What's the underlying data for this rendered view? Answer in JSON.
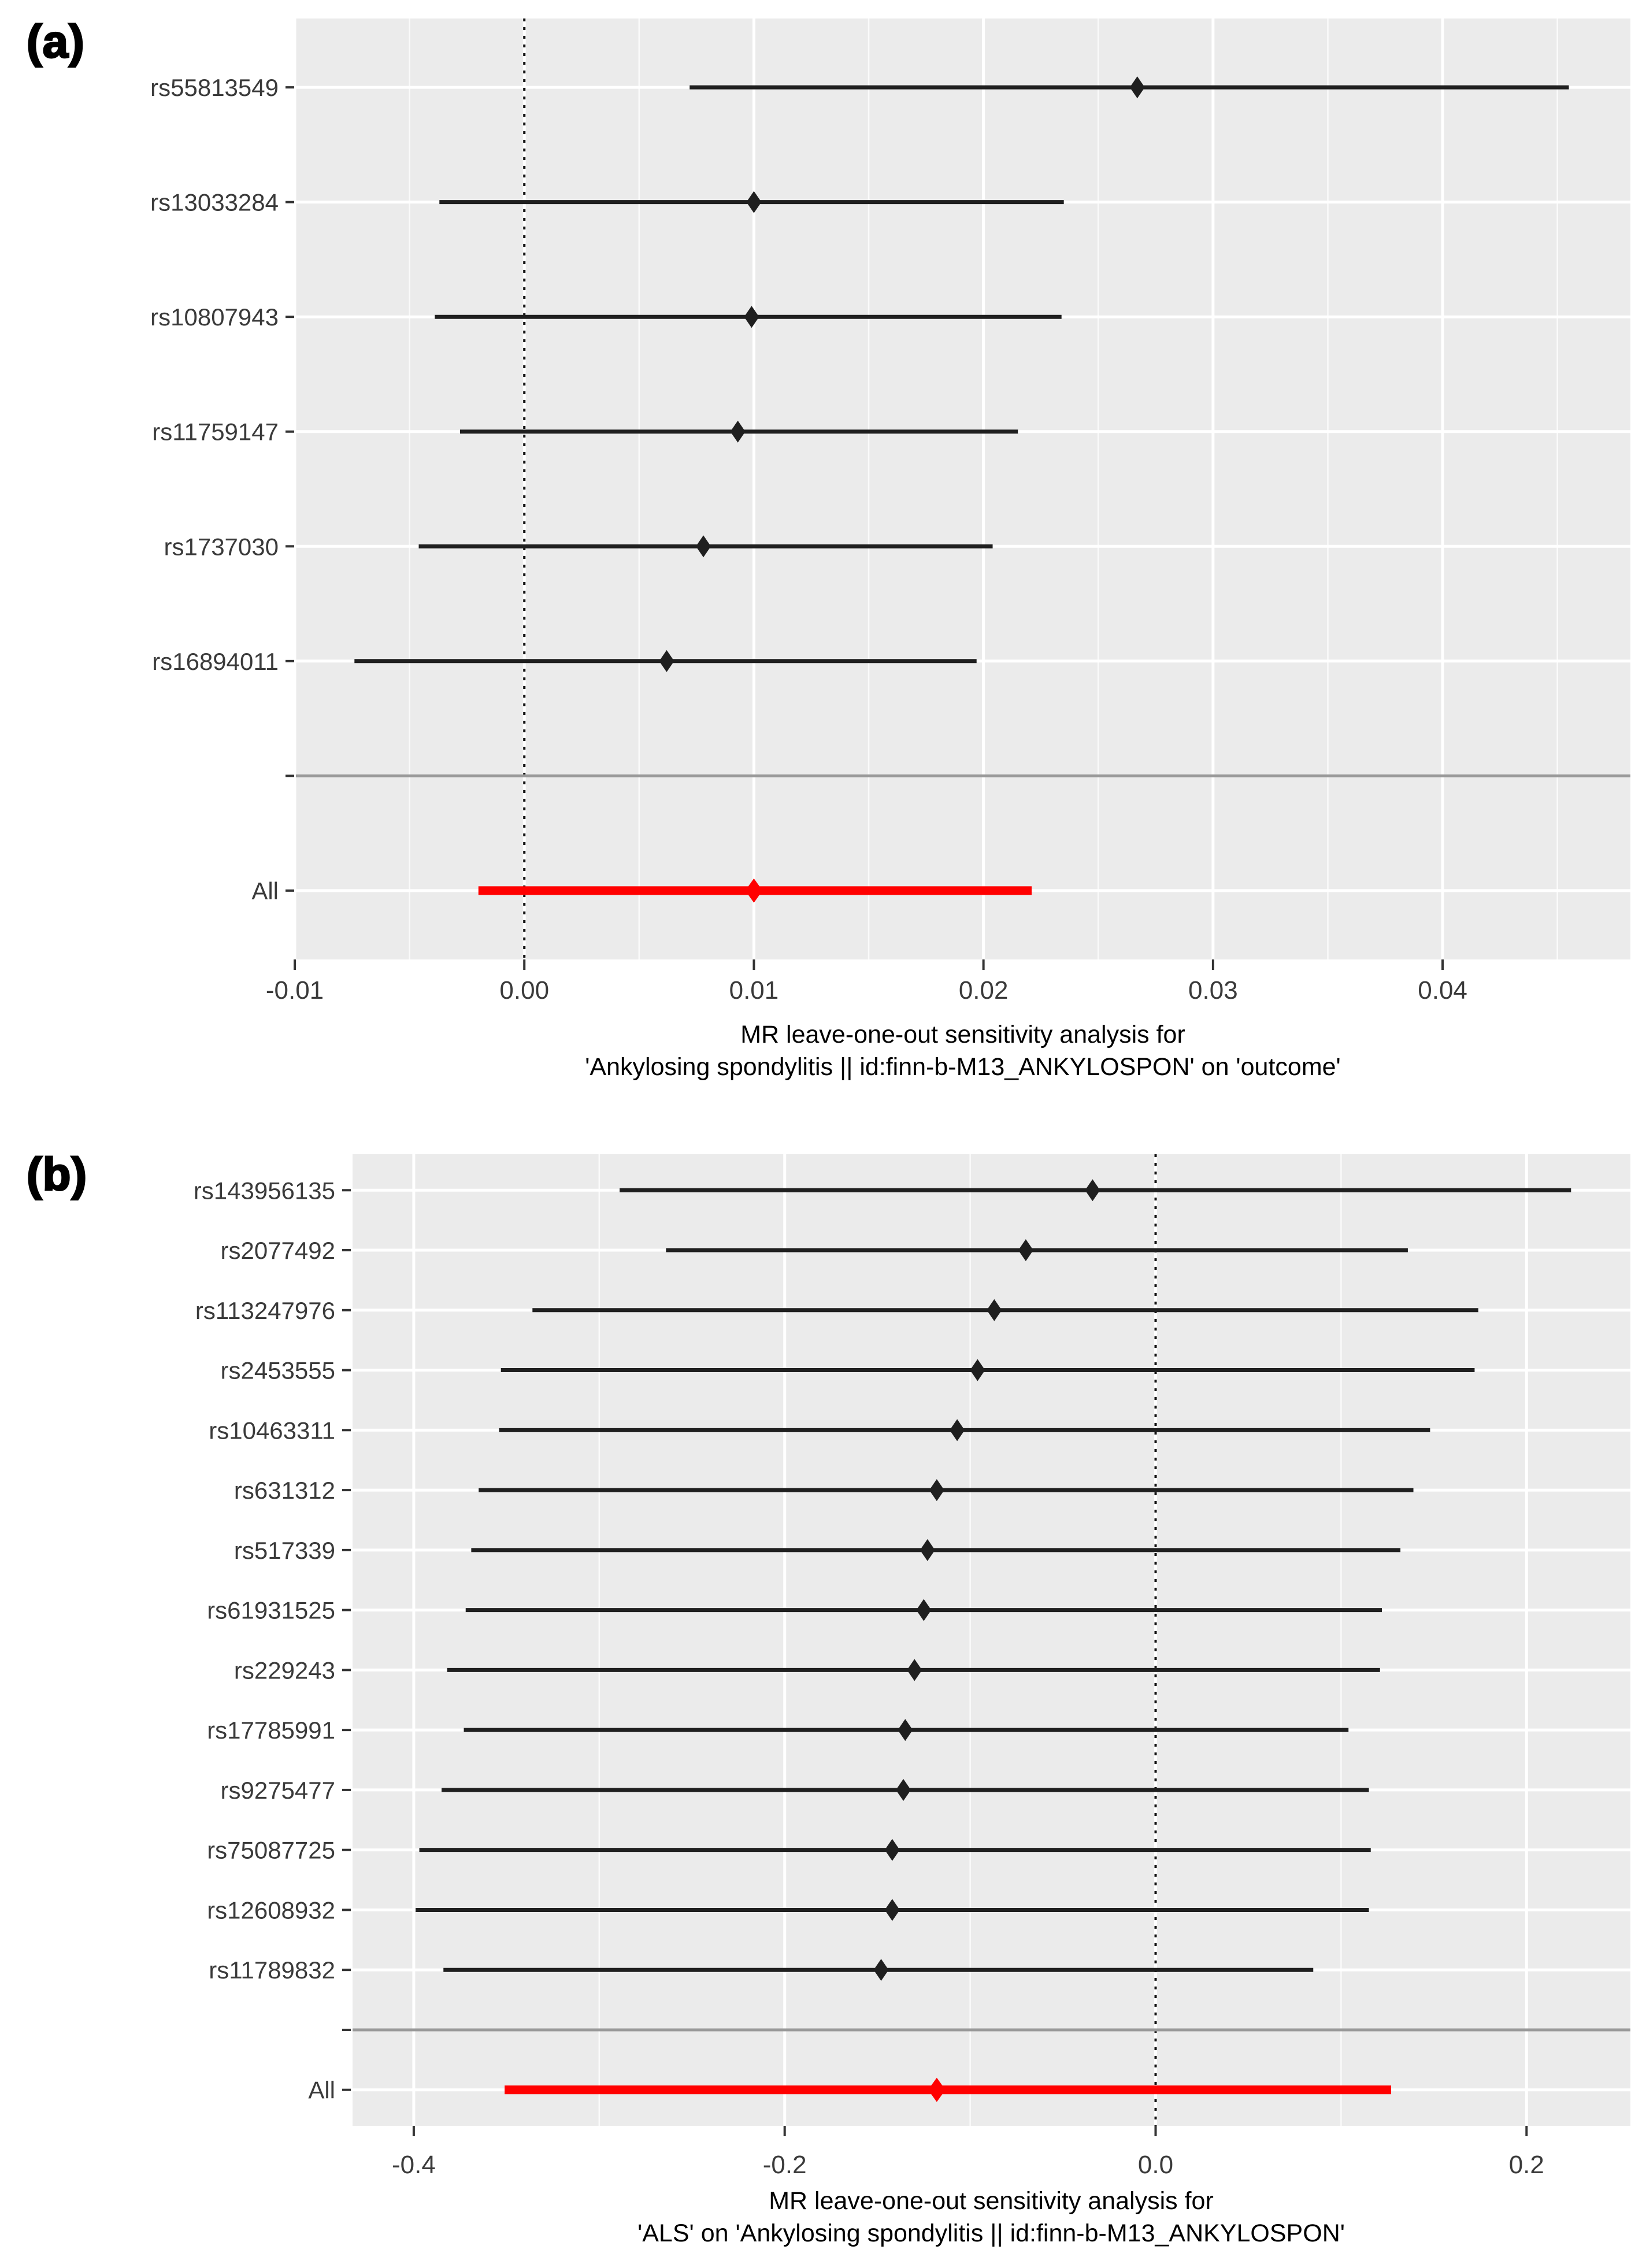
{
  "figure": {
    "background": "#ffffff"
  },
  "chart_data": [
    {
      "type": "forest",
      "panel_label": "(a)",
      "caption_line1": "MR leave-one-out sensitivity analysis for",
      "caption_line2": "'Ankylosing spondylitis || id:finn-b-M13_ANKYLOSPON' on 'outcome'",
      "legend_position": "none",
      "grid": true,
      "xlim": [
        -0.00995,
        0.04818
      ],
      "zero_line": 0,
      "x_ticks": [
        -0.01,
        0,
        0.01,
        0.02,
        0.03,
        0.04
      ],
      "x_tick_labels": [
        "-0.01",
        "0.00",
        "0.01",
        "0.02",
        "0.03",
        "0.04"
      ],
      "x_minor_ticks": [
        -0.005,
        0.005,
        0.015,
        0.025,
        0.035,
        0.045
      ],
      "colors": {
        "panel_bg": "#ebebeb",
        "grid_major": "#ffffff",
        "grid_minor": "#f5f5f5",
        "bar": "#1f1f1f",
        "highlight": "#ff0000",
        "separator": "#999999",
        "zero_line": "#111111",
        "axis_text": "#3a3a3a"
      },
      "rows": [
        {
          "label": "rs55813549",
          "b": 0.0267,
          "lo": 0.0072,
          "hi": 0.0455
        },
        {
          "label": "rs13033284",
          "b": 0.01,
          "lo": -0.0037,
          "hi": 0.0235
        },
        {
          "label": "rs10807943",
          "b": 0.0099,
          "lo": -0.0039,
          "hi": 0.0234
        },
        {
          "label": "rs11759147",
          "b": 0.0093,
          "lo": -0.0028,
          "hi": 0.0215
        },
        {
          "label": "rs1737030",
          "b": 0.0078,
          "lo": -0.0046,
          "hi": 0.0204
        },
        {
          "label": "rs16894011",
          "b": 0.0062,
          "lo": -0.0074,
          "hi": 0.0197
        },
        {
          "label": "",
          "separator": true
        },
        {
          "label": "All",
          "b": 0.01,
          "lo": -0.002,
          "hi": 0.0221,
          "highlight": true
        }
      ]
    },
    {
      "type": "forest",
      "panel_label": "(b)",
      "caption_line1": "MR leave-one-out sensitivity analysis for",
      "caption_line2": "'ALS' on 'Ankylosing spondylitis || id:finn-b-M13_ANKYLOSPON'",
      "legend_position": "none",
      "grid": true,
      "xlim": [
        -0.433,
        0.256
      ],
      "zero_line": 0,
      "x_ticks": [
        -0.4,
        -0.2,
        0,
        0.2
      ],
      "x_tick_labels": [
        "-0.4",
        "-0.2",
        "0.0",
        "0.2"
      ],
      "x_minor_ticks": [
        -0.3,
        -0.1,
        0.1
      ],
      "colors": {
        "panel_bg": "#ebebeb",
        "grid_major": "#ffffff",
        "grid_minor": "#f5f5f5",
        "bar": "#1f1f1f",
        "highlight": "#ff0000",
        "separator": "#999999",
        "zero_line": "#111111",
        "axis_text": "#3a3a3a"
      },
      "rows": [
        {
          "label": "rs143956135",
          "b": -0.034,
          "lo": -0.289,
          "hi": 0.224
        },
        {
          "label": "rs2077492",
          "b": -0.07,
          "lo": -0.264,
          "hi": 0.136
        },
        {
          "label": "rs113247976",
          "b": -0.087,
          "lo": -0.336,
          "hi": 0.174
        },
        {
          "label": "rs2453555",
          "b": -0.096,
          "lo": -0.353,
          "hi": 0.172
        },
        {
          "label": "rs10463311",
          "b": -0.107,
          "lo": -0.354,
          "hi": 0.148
        },
        {
          "label": "rs631312",
          "b": -0.118,
          "lo": -0.365,
          "hi": 0.139
        },
        {
          "label": "rs517339",
          "b": -0.123,
          "lo": -0.369,
          "hi": 0.132
        },
        {
          "label": "rs61931525",
          "b": -0.125,
          "lo": -0.372,
          "hi": 0.122
        },
        {
          "label": "rs229243",
          "b": -0.13,
          "lo": -0.382,
          "hi": 0.121
        },
        {
          "label": "rs17785991",
          "b": -0.135,
          "lo": -0.373,
          "hi": 0.104
        },
        {
          "label": "rs9275477",
          "b": -0.136,
          "lo": -0.385,
          "hi": 0.115
        },
        {
          "label": "rs75087725",
          "b": -0.142,
          "lo": -0.397,
          "hi": 0.116
        },
        {
          "label": "rs12608932",
          "b": -0.142,
          "lo": -0.399,
          "hi": 0.115
        },
        {
          "label": "rs11789832",
          "b": -0.148,
          "lo": -0.384,
          "hi": 0.085
        },
        {
          "label": "",
          "separator": true
        },
        {
          "label": "All",
          "b": -0.118,
          "lo": -0.351,
          "hi": 0.127,
          "highlight": true
        }
      ]
    }
  ]
}
